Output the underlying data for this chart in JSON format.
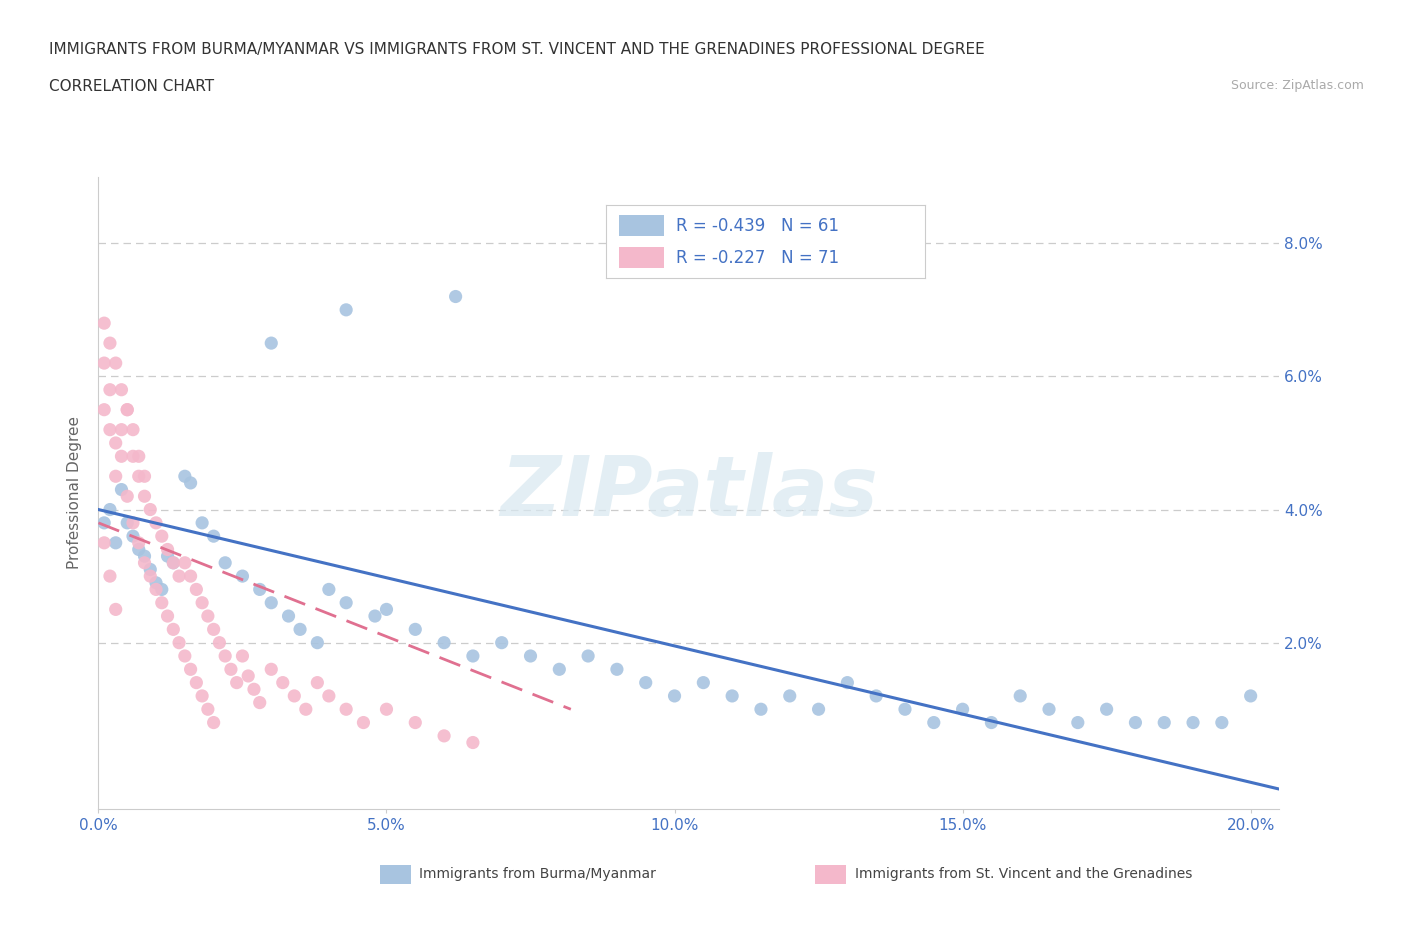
{
  "title_line1": "IMMIGRANTS FROM BURMA/MYANMAR VS IMMIGRANTS FROM ST. VINCENT AND THE GRENADINES PROFESSIONAL DEGREE",
  "title_line2": "CORRELATION CHART",
  "source_text": "Source: ZipAtlas.com",
  "ylabel": "Professional Degree",
  "legend_label_blue": "Immigrants from Burma/Myanmar",
  "legend_label_pink": "Immigrants from St. Vincent and the Grenadines",
  "r_blue": -0.439,
  "n_blue": 61,
  "r_pink": -0.227,
  "n_pink": 71,
  "blue_color": "#A8C4E0",
  "pink_color": "#F4B8CB",
  "trend_blue_color": "#4472C4",
  "trend_pink_color": "#E07090",
  "watermark": "ZIPatlas",
  "xlim": [
    0.0,
    0.205
  ],
  "ylim": [
    -0.005,
    0.09
  ],
  "xticks": [
    0.0,
    0.05,
    0.1,
    0.15,
    0.2
  ],
  "yticks": [
    0.02,
    0.04,
    0.06,
    0.08
  ],
  "yticks_right": [
    0.02,
    0.04,
    0.06,
    0.08
  ],
  "grid_color": "#CCCCCC",
  "bg_color": "#FFFFFF",
  "axis_color": "#4472C4",
  "blue_scatter_x": [
    0.001,
    0.002,
    0.003,
    0.004,
    0.005,
    0.006,
    0.007,
    0.008,
    0.009,
    0.01,
    0.011,
    0.012,
    0.013,
    0.015,
    0.016,
    0.018,
    0.02,
    0.022,
    0.025,
    0.028,
    0.03,
    0.033,
    0.035,
    0.038,
    0.04,
    0.043,
    0.048,
    0.05,
    0.055,
    0.06,
    0.065,
    0.07,
    0.075,
    0.08,
    0.085,
    0.09,
    0.095,
    0.1,
    0.105,
    0.11,
    0.115,
    0.12,
    0.125,
    0.13,
    0.135,
    0.14,
    0.145,
    0.15,
    0.155,
    0.16,
    0.165,
    0.17,
    0.175,
    0.18,
    0.185,
    0.19,
    0.195,
    0.2,
    0.062,
    0.043,
    0.03
  ],
  "blue_scatter_y": [
    0.038,
    0.04,
    0.035,
    0.043,
    0.038,
    0.036,
    0.034,
    0.033,
    0.031,
    0.029,
    0.028,
    0.033,
    0.032,
    0.045,
    0.044,
    0.038,
    0.036,
    0.032,
    0.03,
    0.028,
    0.026,
    0.024,
    0.022,
    0.02,
    0.028,
    0.026,
    0.024,
    0.025,
    0.022,
    0.02,
    0.018,
    0.02,
    0.018,
    0.016,
    0.018,
    0.016,
    0.014,
    0.012,
    0.014,
    0.012,
    0.01,
    0.012,
    0.01,
    0.014,
    0.012,
    0.01,
    0.008,
    0.01,
    0.008,
    0.012,
    0.01,
    0.008,
    0.01,
    0.008,
    0.008,
    0.008,
    0.008,
    0.012,
    0.072,
    0.07,
    0.065
  ],
  "pink_scatter_x": [
    0.001,
    0.001,
    0.002,
    0.002,
    0.003,
    0.003,
    0.004,
    0.004,
    0.005,
    0.005,
    0.006,
    0.006,
    0.007,
    0.007,
    0.008,
    0.008,
    0.009,
    0.009,
    0.01,
    0.01,
    0.011,
    0.011,
    0.012,
    0.012,
    0.013,
    0.013,
    0.014,
    0.014,
    0.015,
    0.015,
    0.016,
    0.016,
    0.017,
    0.017,
    0.018,
    0.018,
    0.019,
    0.019,
    0.02,
    0.02,
    0.021,
    0.022,
    0.023,
    0.024,
    0.025,
    0.026,
    0.027,
    0.028,
    0.03,
    0.032,
    0.034,
    0.036,
    0.038,
    0.04,
    0.043,
    0.046,
    0.05,
    0.055,
    0.06,
    0.065,
    0.001,
    0.002,
    0.003,
    0.004,
    0.005,
    0.006,
    0.007,
    0.008,
    0.001,
    0.002,
    0.003
  ],
  "pink_scatter_y": [
    0.062,
    0.055,
    0.058,
    0.052,
    0.05,
    0.045,
    0.052,
    0.048,
    0.055,
    0.042,
    0.048,
    0.038,
    0.045,
    0.035,
    0.042,
    0.032,
    0.04,
    0.03,
    0.038,
    0.028,
    0.036,
    0.026,
    0.034,
    0.024,
    0.032,
    0.022,
    0.03,
    0.02,
    0.032,
    0.018,
    0.03,
    0.016,
    0.028,
    0.014,
    0.026,
    0.012,
    0.024,
    0.01,
    0.022,
    0.008,
    0.02,
    0.018,
    0.016,
    0.014,
    0.018,
    0.015,
    0.013,
    0.011,
    0.016,
    0.014,
    0.012,
    0.01,
    0.014,
    0.012,
    0.01,
    0.008,
    0.01,
    0.008,
    0.006,
    0.005,
    0.068,
    0.065,
    0.062,
    0.058,
    0.055,
    0.052,
    0.048,
    0.045,
    0.035,
    0.03,
    0.025
  ],
  "blue_trend_x0": 0.0,
  "blue_trend_x1": 0.205,
  "blue_trend_y0": 0.04,
  "blue_trend_y1": -0.002,
  "pink_trend_x0": 0.0,
  "pink_trend_x1": 0.082,
  "pink_trend_y0": 0.038,
  "pink_trend_y1": 0.01
}
